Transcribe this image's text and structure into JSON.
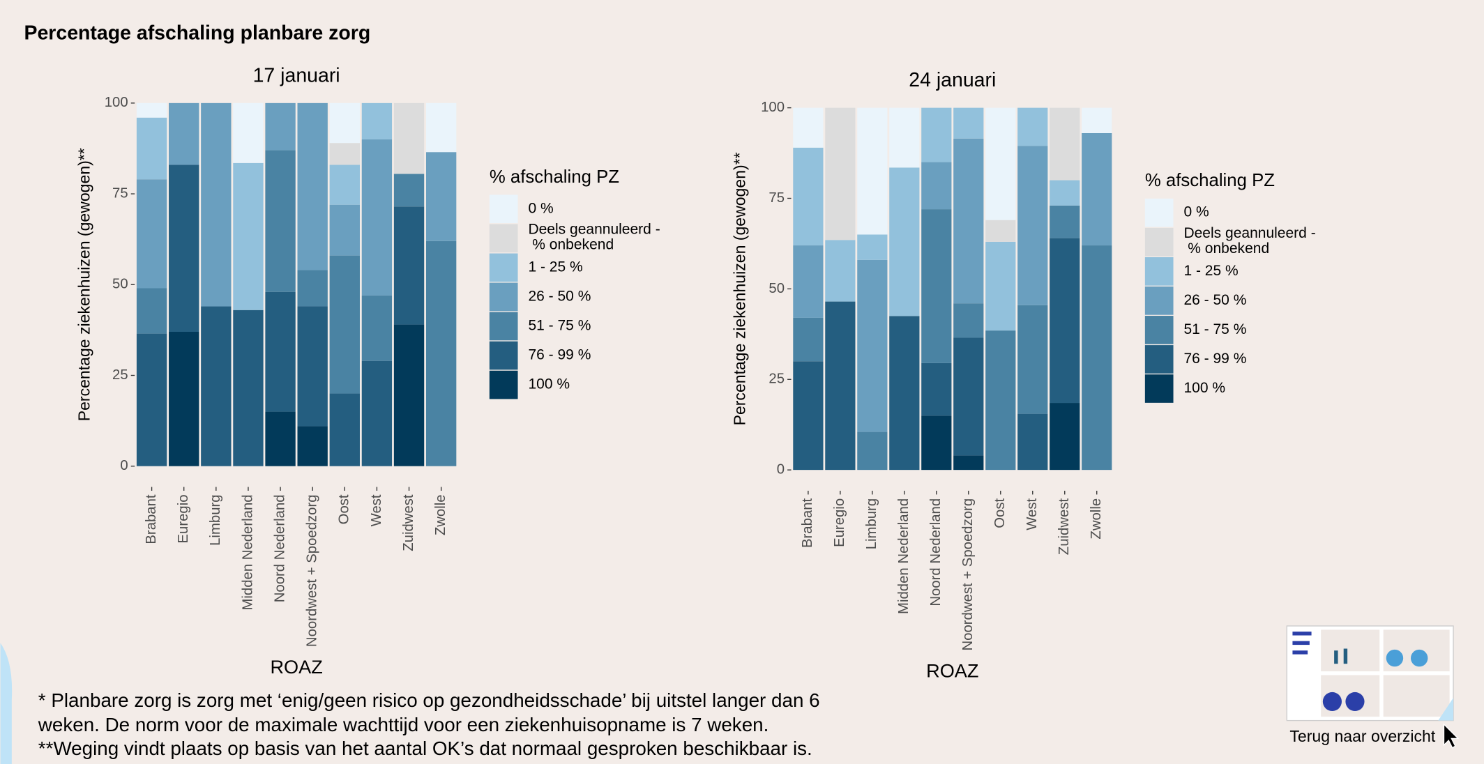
{
  "page_title": "Percentage afschaling planbare zorg",
  "chart_data": [
    {
      "type": "bar",
      "stacked": true,
      "title": "17 januari",
      "xlabel": "ROAZ",
      "ylabel": "Percentage ziekenhuizen (gewogen)**",
      "legend_title": "% afschaling PZ",
      "legend": "right",
      "grid": false,
      "ylim": [
        0,
        100
      ],
      "yticks": [
        0,
        25,
        50,
        75,
        100
      ],
      "categories": [
        "Brabant",
        "Euregio",
        "Limburg",
        "Midden Nederland",
        "Noord Nederland",
        "Noordwest + Spoedzorg",
        "Oost",
        "West",
        "Zuidwest",
        "Zwolle"
      ],
      "series": [
        {
          "name": "0 %",
          "color": "#eaf4fb",
          "values": [
            4,
            0,
            0,
            16.5,
            0,
            0,
            11,
            0,
            0,
            13.5
          ]
        },
        {
          "name": "Deels geannuleerd -\n % onbekend",
          "color": "#dcdcdc",
          "values": [
            0,
            0,
            0,
            0,
            0,
            0,
            6,
            0,
            19.5,
            0
          ]
        },
        {
          "name": "1 - 25 %",
          "color": "#92c1dc",
          "values": [
            17,
            0,
            0,
            40.5,
            0,
            0,
            11,
            10,
            0,
            0
          ]
        },
        {
          "name": "26 - 50 %",
          "color": "#6a9fbf",
          "values": [
            30,
            17,
            56,
            0,
            13,
            46,
            14,
            43,
            0,
            24.5
          ]
        },
        {
          "name": "51 - 75 %",
          "color": "#4a83a3",
          "values": [
            12.5,
            0,
            0,
            0,
            39,
            10,
            38,
            18,
            9,
            62
          ]
        },
        {
          "name": "76 - 99 %",
          "color": "#245e80",
          "values": [
            36.5,
            46,
            44,
            43,
            33,
            33,
            20,
            29,
            32.5,
            0
          ]
        },
        {
          "name": "100 %",
          "color": "#023a5a",
          "values": [
            0,
            37,
            0,
            0,
            15,
            11,
            0,
            0,
            39,
            0
          ]
        }
      ]
    },
    {
      "type": "bar",
      "stacked": true,
      "title": "24 januari",
      "xlabel": "ROAZ",
      "ylabel": "Percentage ziekenhuizen (gewogen)**",
      "legend_title": "% afschaling PZ",
      "legend": "right",
      "grid": false,
      "ylim": [
        0,
        100
      ],
      "yticks": [
        0,
        25,
        50,
        75,
        100
      ],
      "categories": [
        "Brabant",
        "Euregio",
        "Limburg",
        "Midden Nederland",
        "Noord Nederland",
        "Noordwest + Spoedzorg",
        "Oost",
        "West",
        "Zuidwest",
        "Zwolle"
      ],
      "series": [
        {
          "name": "0 %",
          "color": "#eaf4fb",
          "values": [
            11,
            0,
            35,
            16.5,
            0,
            0,
            31,
            0,
            0,
            7
          ]
        },
        {
          "name": "Deels geannuleerd -\n % onbekend",
          "color": "#dcdcdc",
          "values": [
            0,
            36.5,
            0,
            0,
            0,
            0,
            6,
            0,
            20,
            0
          ]
        },
        {
          "name": "1 - 25 %",
          "color": "#92c1dc",
          "values": [
            27,
            17,
            7,
            41,
            15,
            8.5,
            24.5,
            10.5,
            7,
            0
          ]
        },
        {
          "name": "26 - 50 %",
          "color": "#6a9fbf",
          "values": [
            20,
            0,
            47.5,
            0,
            13,
            45.5,
            0,
            44,
            0,
            31
          ]
        },
        {
          "name": "51 - 75 %",
          "color": "#4a83a3",
          "values": [
            12,
            0,
            10.5,
            0,
            42.5,
            9.5,
            38.5,
            30,
            9,
            62
          ]
        },
        {
          "name": "76 - 99 %",
          "color": "#245e80",
          "values": [
            30,
            46.5,
            0,
            42.5,
            14.5,
            32.5,
            0,
            15.5,
            45.5,
            0
          ]
        },
        {
          "name": "100 %",
          "color": "#023a5a",
          "values": [
            0,
            0,
            0,
            0,
            15,
            4,
            0,
            0,
            18.5,
            0
          ]
        }
      ]
    }
  ],
  "footnotes": [
    "* Planbare zorg is zorg met ‘enig/geen risico op gezondheidsschade’ bij uitstel langer dan 6",
    "weken. De norm voor de maximale wachttijd voor een ziekenhuisopname is 7 weken.",
    "**Weging vindt plaats op basis van het aantal OK’s dat normaal gesproken beschikbaar is."
  ],
  "nav_label": "Terug naar overzicht"
}
